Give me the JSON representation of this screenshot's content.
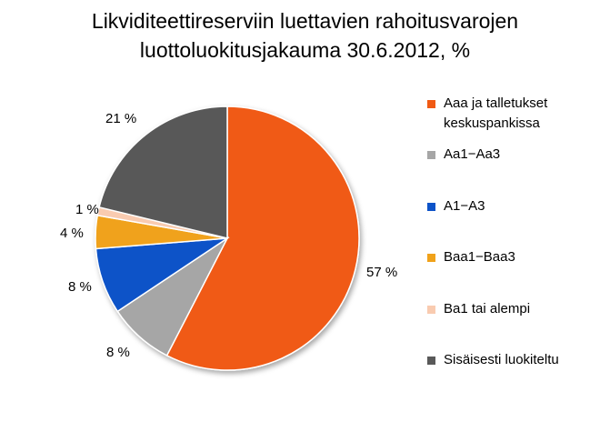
{
  "chart_data": {
    "type": "pie",
    "title": "Likviditeettireserviin luettavien rahoitusvarojen luottoluokitusjakauma 30.6.2012, %",
    "title_lines": [
      "Likviditeettireserviin luettavien rahoitusvarojen",
      "luottoluokitusjakauma 30.6.2012, %"
    ],
    "legend_position": "right",
    "slices": [
      {
        "name": "Aaa ja talletukset keskuspankissa",
        "legend_lines": [
          "Aaa ja talletukset",
          "keskuspankissa"
        ],
        "value": 57,
        "label": "57 %",
        "color": "#f05a14"
      },
      {
        "name": "Aa1−Aa3",
        "legend_lines": [
          "Aa1−Aa3"
        ],
        "value": 8,
        "label": "8 %",
        "color": "#a6a6a6"
      },
      {
        "name": "A1−A3",
        "legend_lines": [
          "A1−A3"
        ],
        "value": 8,
        "label": "8 %",
        "color": "#0d53c8"
      },
      {
        "name": "Baa1−Baa3",
        "legend_lines": [
          "Baa1−Baa3"
        ],
        "value": 4,
        "label": "4 %",
        "color": "#f0a21a"
      },
      {
        "name": "Ba1 tai alempi",
        "legend_lines": [
          "Ba1 tai alempi"
        ],
        "value": 1,
        "label": "1 %",
        "color": "#f9cbb0"
      },
      {
        "name": "Sisäisesti luokiteltu",
        "legend_lines": [
          "Sisäisesti luokiteltu"
        ],
        "value": 21,
        "label": "21 %",
        "color": "#595959"
      }
    ]
  }
}
